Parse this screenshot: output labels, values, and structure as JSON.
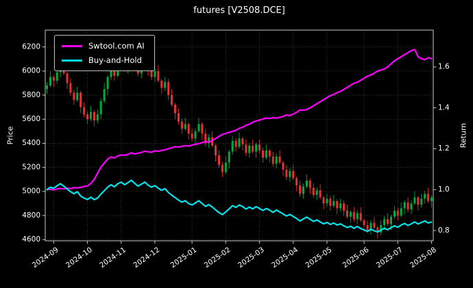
{
  "chart_data": {
    "type": "candlestick+line",
    "title": "futures [V2508.DCE]",
    "ylabel_left": "Price",
    "ylabel_right": "Return",
    "grid": "dotted",
    "legend_position": "upper-left",
    "x_tick_labels": [
      "2024-09",
      "2024-10",
      "2024-11",
      "2024-12",
      "2025-01",
      "2025-02",
      "2025-03",
      "2025-04",
      "2025-05",
      "2025-06",
      "2025-07",
      "2025-08"
    ],
    "x_tick_indices": [
      2,
      12,
      22,
      32,
      43,
      53,
      63,
      73,
      83,
      94,
      104,
      114
    ],
    "price_ticks": [
      4600,
      4800,
      5000,
      5200,
      5400,
      5600,
      5800,
      6000,
      6200
    ],
    "price_range": [
      4590,
      6340
    ],
    "return_ticks": [
      0.8,
      1.0,
      1.2,
      1.4,
      1.6
    ],
    "return_range": [
      0.75,
      1.78
    ],
    "candle_up_color": "#00aa3c",
    "candle_down_color": "#e03232",
    "candles": [
      [
        5850,
        5905,
        5810,
        5880
      ],
      [
        5880,
        6000,
        5865,
        5950
      ],
      [
        5950,
        5965,
        5870,
        5920
      ],
      [
        5920,
        6030,
        5895,
        5990
      ],
      [
        5990,
        6075,
        5950,
        6050
      ],
      [
        6050,
        6100,
        5965,
        5980
      ],
      [
        5980,
        5995,
        5850,
        5900
      ],
      [
        5900,
        5940,
        5795,
        5820
      ],
      [
        5820,
        5845,
        5720,
        5760
      ],
      [
        5760,
        5870,
        5745,
        5820
      ],
      [
        5820,
        5835,
        5650,
        5700
      ],
      [
        5700,
        5740,
        5615,
        5640
      ],
      [
        5640,
        5665,
        5560,
        5600
      ],
      [
        5600,
        5710,
        5585,
        5660
      ],
      [
        5660,
        5675,
        5540,
        5590
      ],
      [
        5590,
        5680,
        5565,
        5640
      ],
      [
        5640,
        5775,
        5600,
        5750
      ],
      [
        5750,
        5900,
        5735,
        5850
      ],
      [
        5850,
        5965,
        5800,
        5950
      ],
      [
        5950,
        6060,
        5925,
        6020
      ],
      [
        6020,
        6045,
        5920,
        5960
      ],
      [
        5960,
        6100,
        5945,
        6050
      ],
      [
        6050,
        6115,
        6000,
        6100
      ],
      [
        6100,
        6140,
        5995,
        6020
      ],
      [
        6020,
        6105,
        5980,
        6080
      ],
      [
        6080,
        6200,
        6065,
        6150
      ],
      [
        6150,
        6165,
        6010,
        6060
      ],
      [
        6060,
        6100,
        5955,
        5980
      ],
      [
        5980,
        6065,
        5940,
        6040
      ],
      [
        6040,
        6150,
        6025,
        6100
      ],
      [
        6100,
        6115,
        5960,
        6010
      ],
      [
        6010,
        6050,
        5925,
        5950
      ],
      [
        5950,
        6025,
        5910,
        6000
      ],
      [
        6000,
        6050,
        5905,
        5920
      ],
      [
        5920,
        5935,
        5810,
        5860
      ],
      [
        5860,
        5950,
        5835,
        5910
      ],
      [
        5910,
        5935,
        5760,
        5800
      ],
      [
        5800,
        5850,
        5705,
        5720
      ],
      [
        5720,
        5735,
        5600,
        5650
      ],
      [
        5650,
        5690,
        5555,
        5580
      ],
      [
        5580,
        5605,
        5480,
        5520
      ],
      [
        5520,
        5610,
        5505,
        5560
      ],
      [
        5560,
        5575,
        5430,
        5480
      ],
      [
        5480,
        5520,
        5415,
        5440
      ],
      [
        5440,
        5525,
        5400,
        5500
      ],
      [
        5500,
        5610,
        5485,
        5560
      ],
      [
        5560,
        5575,
        5430,
        5480
      ],
      [
        5480,
        5520,
        5375,
        5400
      ],
      [
        5400,
        5475,
        5360,
        5450
      ],
      [
        5450,
        5500,
        5365,
        5380
      ],
      [
        5380,
        5395,
        5250,
        5300
      ],
      [
        5300,
        5340,
        5195,
        5220
      ],
      [
        5220,
        5245,
        5120,
        5160
      ],
      [
        5160,
        5290,
        5145,
        5240
      ],
      [
        5240,
        5345,
        5190,
        5330
      ],
      [
        5330,
        5460,
        5305,
        5420
      ],
      [
        5420,
        5445,
        5330,
        5370
      ],
      [
        5370,
        5490,
        5355,
        5440
      ],
      [
        5440,
        5455,
        5340,
        5390
      ],
      [
        5390,
        5430,
        5295,
        5320
      ],
      [
        5320,
        5405,
        5280,
        5380
      ],
      [
        5380,
        5430,
        5315,
        5330
      ],
      [
        5330,
        5405,
        5280,
        5390
      ],
      [
        5390,
        5430,
        5315,
        5340
      ],
      [
        5340,
        5365,
        5240,
        5280
      ],
      [
        5280,
        5390,
        5265,
        5340
      ],
      [
        5340,
        5355,
        5240,
        5290
      ],
      [
        5290,
        5330,
        5205,
        5230
      ],
      [
        5230,
        5315,
        5190,
        5290
      ],
      [
        5290,
        5340,
        5225,
        5240
      ],
      [
        5240,
        5255,
        5130,
        5180
      ],
      [
        5180,
        5220,
        5095,
        5120
      ],
      [
        5120,
        5195,
        5080,
        5170
      ],
      [
        5170,
        5220,
        5095,
        5110
      ],
      [
        5110,
        5125,
        5000,
        5050
      ],
      [
        5050,
        5090,
        4955,
        4980
      ],
      [
        4980,
        5065,
        4940,
        5040
      ],
      [
        5040,
        5140,
        5025,
        5090
      ],
      [
        5090,
        5105,
        4980,
        5030
      ],
      [
        5030,
        5070,
        4945,
        4970
      ],
      [
        4970,
        5035,
        4930,
        5010
      ],
      [
        5010,
        5060,
        4935,
        4950
      ],
      [
        4950,
        4965,
        4850,
        4900
      ],
      [
        4900,
        4980,
        4875,
        4940
      ],
      [
        4940,
        4965,
        4840,
        4880
      ],
      [
        4880,
        4970,
        4865,
        4920
      ],
      [
        4920,
        4935,
        4810,
        4860
      ],
      [
        4860,
        4940,
        4835,
        4900
      ],
      [
        4900,
        4925,
        4800,
        4840
      ],
      [
        4840,
        4890,
        4775,
        4790
      ],
      [
        4790,
        4845,
        4740,
        4830
      ],
      [
        4830,
        4870,
        4745,
        4770
      ],
      [
        4770,
        4845,
        4730,
        4820
      ],
      [
        4820,
        4870,
        4745,
        4760
      ],
      [
        4760,
        4775,
        4670,
        4720
      ],
      [
        4720,
        4760,
        4655,
        4680
      ],
      [
        4680,
        4765,
        4640,
        4740
      ],
      [
        4740,
        4790,
        4685,
        4700
      ],
      [
        4700,
        4715,
        4610,
        4660
      ],
      [
        4660,
        4760,
        4635,
        4720
      ],
      [
        4720,
        4795,
        4680,
        4770
      ],
      [
        4770,
        4820,
        4715,
        4730
      ],
      [
        4730,
        4805,
        4680,
        4790
      ],
      [
        4790,
        4880,
        4765,
        4840
      ],
      [
        4840,
        4865,
        4760,
        4800
      ],
      [
        4800,
        4910,
        4785,
        4860
      ],
      [
        4860,
        4925,
        4810,
        4910
      ],
      [
        4910,
        4950,
        4825,
        4850
      ],
      [
        4850,
        4925,
        4810,
        4900
      ],
      [
        4900,
        5000,
        4885,
        4950
      ],
      [
        4950,
        4965,
        4840,
        4890
      ],
      [
        4890,
        4980,
        4865,
        4940
      ],
      [
        4940,
        5005,
        4900,
        4980
      ],
      [
        4980,
        5030,
        4905,
        4920
      ],
      [
        4920,
        4965,
        4870,
        4950
      ]
    ],
    "series": [
      {
        "name": "Swtool.com AI",
        "axis": "return",
        "color": "#ff00ff",
        "values": [
          1.0,
          1.002,
          0.999,
          1.003,
          1.006,
          1.004,
          1.008,
          1.005,
          1.01,
          1.008,
          1.012,
          1.015,
          1.018,
          1.03,
          1.05,
          1.08,
          1.11,
          1.13,
          1.15,
          1.16,
          1.155,
          1.165,
          1.17,
          1.168,
          1.172,
          1.18,
          1.175,
          1.178,
          1.182,
          1.188,
          1.185,
          1.183,
          1.19,
          1.188,
          1.192,
          1.195,
          1.2,
          1.205,
          1.21,
          1.208,
          1.212,
          1.215,
          1.213,
          1.218,
          1.222,
          1.225,
          1.23,
          1.235,
          1.232,
          1.24,
          1.25,
          1.26,
          1.27,
          1.275,
          1.28,
          1.285,
          1.29,
          1.3,
          1.305,
          1.315,
          1.32,
          1.33,
          1.335,
          1.34,
          1.345,
          1.35,
          1.348,
          1.352,
          1.35,
          1.353,
          1.358,
          1.365,
          1.362,
          1.37,
          1.378,
          1.39,
          1.388,
          1.392,
          1.4,
          1.41,
          1.42,
          1.43,
          1.44,
          1.45,
          1.46,
          1.465,
          1.475,
          1.48,
          1.49,
          1.5,
          1.51,
          1.52,
          1.525,
          1.535,
          1.545,
          1.555,
          1.56,
          1.57,
          1.58,
          1.585,
          1.59,
          1.6,
          1.615,
          1.63,
          1.64,
          1.65,
          1.66,
          1.67,
          1.68,
          1.685,
          1.65,
          1.64,
          1.635,
          1.645,
          1.64
        ]
      },
      {
        "name": "Buy-and-Hold",
        "axis": "return",
        "color": "#00e5ee",
        "values": [
          1.0,
          1.012,
          1.007,
          1.019,
          1.029,
          1.017,
          1.003,
          0.99,
          0.98,
          0.99,
          0.969,
          0.959,
          0.952,
          0.963,
          0.951,
          0.959,
          0.978,
          0.995,
          1.012,
          1.024,
          1.014,
          1.029,
          1.037,
          1.024,
          1.034,
          1.046,
          1.031,
          1.017,
          1.027,
          1.037,
          1.022,
          1.012,
          1.02,
          1.007,
          0.997,
          1.005,
          0.986,
          0.973,
          0.961,
          0.949,
          0.939,
          0.946,
          0.932,
          0.925,
          0.935,
          0.946,
          0.932,
          0.918,
          0.927,
          0.915,
          0.901,
          0.888,
          0.878,
          0.891,
          0.906,
          0.922,
          0.913,
          0.925,
          0.917,
          0.905,
          0.915,
          0.906,
          0.917,
          0.908,
          0.898,
          0.908,
          0.9,
          0.889,
          0.9,
          0.891,
          0.881,
          0.871,
          0.879,
          0.869,
          0.859,
          0.847,
          0.857,
          0.866,
          0.855,
          0.845,
          0.852,
          0.842,
          0.833,
          0.84,
          0.83,
          0.837,
          0.827,
          0.833,
          0.823,
          0.815,
          0.821,
          0.811,
          0.82,
          0.81,
          0.803,
          0.796,
          0.806,
          0.799,
          0.793,
          0.803,
          0.811,
          0.804,
          0.815,
          0.823,
          0.816,
          0.827,
          0.835,
          0.825,
          0.833,
          0.842,
          0.832,
          0.84,
          0.847,
          0.837,
          0.842
        ]
      }
    ]
  },
  "colors": {
    "background": "#000000",
    "frame": "#c8c8c8",
    "grid": "#4d4d4d",
    "text": "#ffffff"
  }
}
